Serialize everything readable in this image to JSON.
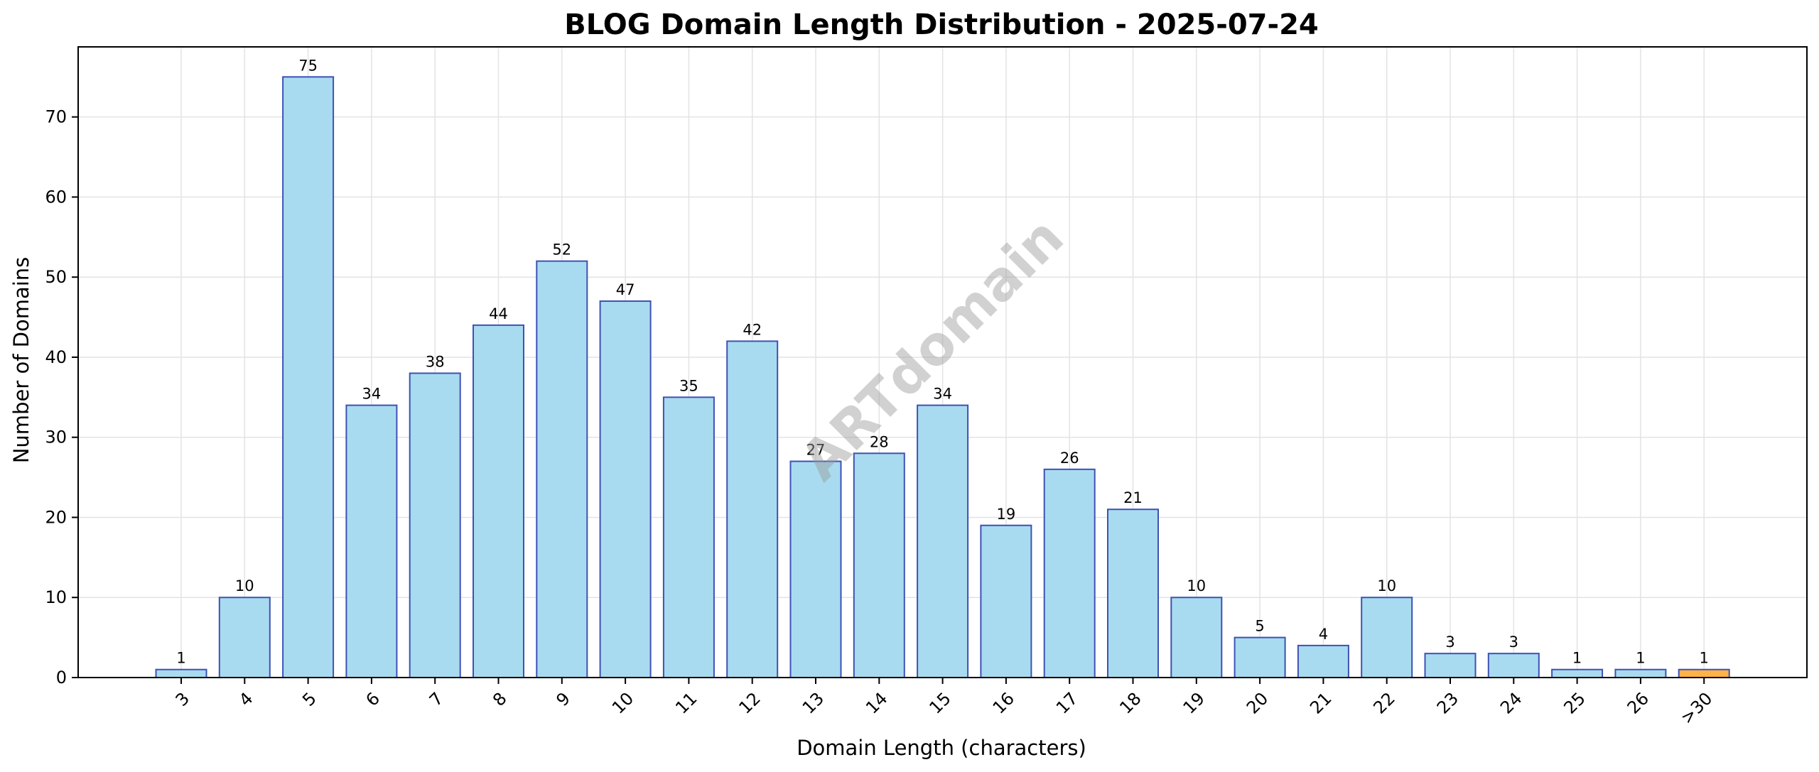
{
  "chart_data": {
    "type": "bar",
    "title": "BLOG Domain Length Distribution - 2025-07-24",
    "xlabel": "Domain Length (characters)",
    "ylabel": "Number of Domains",
    "categories": [
      "3",
      "4",
      "5",
      "6",
      "7",
      "8",
      "9",
      "10",
      "11",
      "12",
      "13",
      "14",
      "15",
      "16",
      "17",
      "18",
      "19",
      "20",
      "21",
      "22",
      "23",
      "24",
      "25",
      "26",
      ">30"
    ],
    "values": [
      1,
      10,
      75,
      34,
      38,
      44,
      52,
      47,
      35,
      42,
      27,
      28,
      34,
      19,
      26,
      21,
      10,
      5,
      4,
      10,
      3,
      3,
      1,
      1,
      1
    ],
    "highlighted_categories": [
      ">30"
    ],
    "ylim": [
      0,
      78.75
    ],
    "yticks": [
      0,
      10,
      20,
      30,
      40,
      50,
      60,
      70
    ],
    "grid": true,
    "watermark": "ARTdomain",
    "colors": {
      "bar_fill": "#a8dbef",
      "bar_edge": "#3f51b5",
      "highlight_fill": "#ffb347",
      "grid": "#e3e3e3",
      "axis": "#000000"
    }
  }
}
